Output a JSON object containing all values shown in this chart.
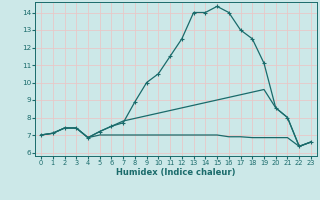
{
  "xlabel": "Humidex (Indice chaleur)",
  "bg_color": "#cce8e8",
  "grid_color": "#e8c8c8",
  "line_color": "#1a6b6b",
  "xlim": [
    -0.5,
    23.5
  ],
  "ylim": [
    5.8,
    14.6
  ],
  "xticks": [
    0,
    1,
    2,
    3,
    4,
    5,
    6,
    7,
    8,
    9,
    10,
    11,
    12,
    13,
    14,
    15,
    16,
    17,
    18,
    19,
    20,
    21,
    22,
    23
  ],
  "yticks": [
    6,
    7,
    8,
    9,
    10,
    11,
    12,
    13,
    14
  ],
  "line1_x": [
    0,
    1,
    2,
    3,
    4,
    5,
    6,
    7,
    8,
    9,
    10,
    11,
    12,
    13,
    14,
    15,
    16,
    17,
    18,
    19,
    20,
    21,
    22,
    23
  ],
  "line1_y": [
    7.0,
    7.1,
    7.4,
    7.4,
    6.85,
    7.2,
    7.5,
    7.7,
    8.9,
    10.0,
    10.5,
    11.5,
    12.5,
    14.0,
    14.0,
    14.35,
    14.0,
    13.0,
    12.5,
    11.1,
    8.55,
    8.0,
    6.35,
    6.6
  ],
  "line2_x": [
    0,
    1,
    2,
    3,
    4,
    5,
    6,
    7,
    8,
    9,
    10,
    11,
    12,
    13,
    14,
    15,
    16,
    17,
    18,
    19,
    20,
    21,
    22,
    23
  ],
  "line2_y": [
    7.0,
    7.1,
    7.4,
    7.4,
    6.85,
    7.2,
    7.5,
    7.8,
    7.95,
    8.1,
    8.25,
    8.4,
    8.55,
    8.7,
    8.85,
    9.0,
    9.15,
    9.3,
    9.45,
    9.6,
    8.55,
    8.0,
    6.35,
    6.6
  ],
  "line3_x": [
    0,
    1,
    2,
    3,
    4,
    5,
    6,
    7,
    8,
    9,
    10,
    11,
    12,
    13,
    14,
    15,
    16,
    17,
    18,
    19,
    20,
    21,
    22,
    23
  ],
  "line3_y": [
    7.0,
    7.1,
    7.4,
    7.4,
    6.85,
    7.0,
    7.0,
    7.0,
    7.0,
    7.0,
    7.0,
    7.0,
    7.0,
    7.0,
    7.0,
    7.0,
    6.9,
    6.9,
    6.85,
    6.85,
    6.85,
    6.85,
    6.35,
    6.6
  ]
}
